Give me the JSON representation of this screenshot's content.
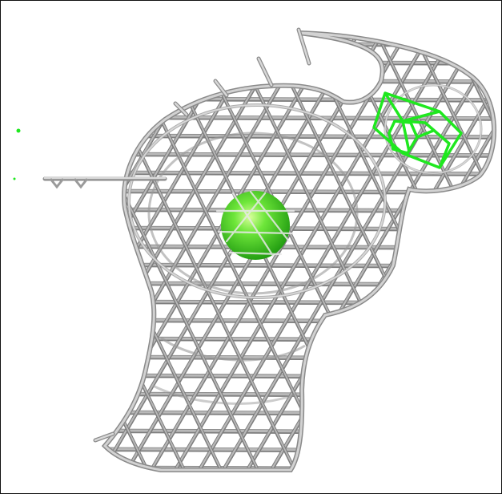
{
  "viewer": {
    "background": "#ffffff",
    "border_color": "#111111",
    "mesh_color": "#b9b9b9",
    "mesh_shadow_color": "#7d7d7d",
    "ion_color": "#39d81f",
    "ligand_color": "#1fe81f",
    "icons": [
      "density-mesh-icon",
      "metal-ion-icon",
      "ligand-icon"
    ]
  }
}
